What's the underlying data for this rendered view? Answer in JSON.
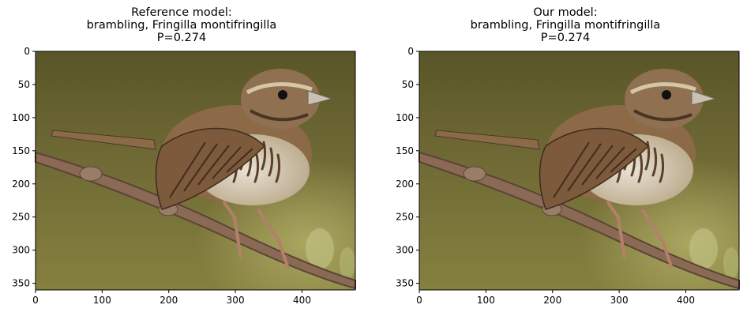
{
  "panels": [
    {
      "title_line1": "Reference model:",
      "title_line2": "brambling, Fringilla montifringilla",
      "title_line3": "P=0.274"
    },
    {
      "title_line1": "Our model:",
      "title_line2": "brambling, Fringilla montifringilla",
      "title_line3": "P=0.274"
    }
  ],
  "axes": {
    "x_ticks": [
      "0",
      "100",
      "200",
      "300",
      "400"
    ],
    "y_ticks": [
      "0",
      "50",
      "100",
      "150",
      "200",
      "250",
      "300",
      "350"
    ]
  },
  "image_content": "bird-on-branch-photo"
}
